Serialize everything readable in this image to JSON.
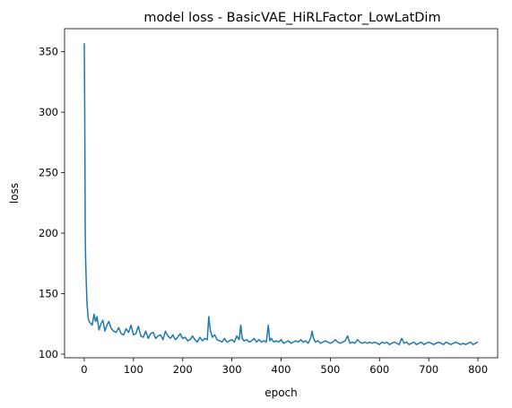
{
  "chart_data": {
    "type": "line",
    "title": "model loss - BasicVAE_HiRLFactor_LowLatDim",
    "xlabel": "epoch",
    "ylabel": "loss",
    "xlim": [
      -40,
      840
    ],
    "ylim": [
      97,
      369
    ],
    "xticks": [
      0,
      100,
      200,
      300,
      400,
      500,
      600,
      700,
      800
    ],
    "yticks": [
      100,
      150,
      200,
      250,
      300,
      350
    ],
    "grid": false,
    "legend": "none",
    "series": [
      {
        "color": "#1f77b4",
        "x": [
          0,
          1,
          2,
          3,
          4,
          5,
          6,
          7,
          8,
          10,
          12,
          14,
          16,
          18,
          20,
          23,
          26,
          30,
          34,
          38,
          42,
          46,
          50,
          55,
          60,
          65,
          70,
          75,
          80,
          85,
          90,
          95,
          100,
          105,
          110,
          115,
          120,
          125,
          130,
          135,
          140,
          145,
          150,
          155,
          160,
          165,
          170,
          175,
          180,
          185,
          190,
          195,
          200,
          205,
          210,
          215,
          220,
          225,
          230,
          235,
          240,
          245,
          250,
          253,
          256,
          260,
          265,
          270,
          275,
          280,
          285,
          290,
          295,
          300,
          305,
          310,
          315,
          318,
          321,
          325,
          330,
          335,
          340,
          345,
          350,
          355,
          360,
          365,
          370,
          374,
          377,
          380,
          385,
          390,
          395,
          400,
          405,
          410,
          415,
          420,
          425,
          430,
          435,
          440,
          445,
          450,
          455,
          460,
          463,
          466,
          470,
          475,
          480,
          485,
          490,
          495,
          500,
          505,
          510,
          515,
          520,
          525,
          530,
          535,
          540,
          545,
          550,
          555,
          560,
          565,
          570,
          575,
          580,
          585,
          590,
          595,
          600,
          605,
          610,
          615,
          620,
          625,
          630,
          635,
          640,
          645,
          650,
          655,
          660,
          665,
          670,
          675,
          680,
          685,
          690,
          695,
          700,
          705,
          710,
          715,
          720,
          725,
          730,
          735,
          740,
          745,
          750,
          755,
          760,
          765,
          770,
          775,
          780,
          785,
          790,
          795,
          800
        ],
        "y": [
          357,
          300,
          196,
          175,
          160,
          148,
          140,
          136,
          130,
          127,
          126,
          125,
          124,
          128,
          133,
          127,
          131,
          120,
          125,
          128,
          119,
          124,
          127,
          121,
          119,
          118,
          122,
          117,
          116,
          121,
          118,
          124,
          116,
          117,
          123,
          115,
          114,
          119,
          113,
          117,
          118,
          113,
          115,
          116,
          112,
          119,
          115,
          113,
          116,
          112,
          114,
          117,
          113,
          114,
          111,
          112,
          115,
          112,
          110,
          114,
          111,
          113,
          112,
          131,
          120,
          114,
          116,
          112,
          111,
          110,
          113,
          110,
          111,
          112,
          110,
          115,
          112,
          124,
          113,
          111,
          112,
          110,
          111,
          113,
          110,
          112,
          110,
          111,
          110,
          124,
          111,
          113,
          110,
          111,
          110,
          112,
          109,
          110,
          111,
          109,
          110,
          111,
          110,
          112,
          110,
          111,
          109,
          113,
          119,
          113,
          110,
          111,
          109,
          110,
          111,
          110,
          109,
          110,
          112,
          110,
          109,
          110,
          111,
          115,
          109,
          110,
          109,
          112,
          110,
          109,
          110,
          109,
          110,
          109,
          110,
          109,
          108,
          110,
          109,
          110,
          108,
          109,
          110,
          109,
          108,
          113,
          109,
          110,
          108,
          109,
          110,
          108,
          109,
          110,
          108,
          109,
          110,
          109,
          108,
          109,
          110,
          109,
          108,
          110,
          109,
          108,
          109,
          110,
          109,
          108,
          109,
          108,
          109,
          110,
          108,
          109,
          110
        ]
      }
    ]
  }
}
